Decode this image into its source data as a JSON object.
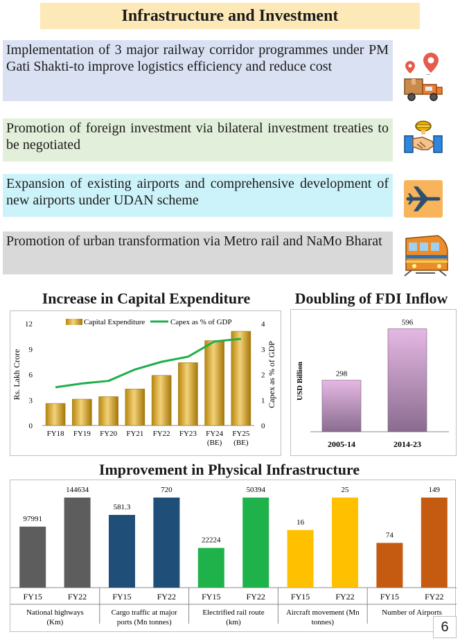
{
  "header": {
    "title": "Infrastructure and Investment"
  },
  "highlights": [
    {
      "text": "Implementation of 3 major railway corridor programmes under PM Gati Shakti-to improve logistics efficiency and reduce cost",
      "icon": "logistics-truck-icon"
    },
    {
      "text": "Promotion of foreign investment via bilateral investment treaties to be negotiated",
      "icon": "handshake-investment-icon"
    },
    {
      "text": "Expansion of existing airports and comprehensive development of new airports under UDAN scheme",
      "icon": "airplane-icon"
    },
    {
      "text": "Promotion of urban transformation via Metro rail and NaMo Bharat",
      "icon": "metro-train-icon"
    }
  ],
  "colors": {
    "title_bg": "#fde9b7",
    "item1_bg": "#d9e1f2",
    "item2_bg": "#e2efda",
    "item3_bg": "#cdf3fa",
    "item4_bg": "#d9d9d9",
    "capex_bar": "#d4a72c",
    "capex_line": "#1fae4b",
    "fdi_bar": "#d8a5d6",
    "nh": "#5d5d5d",
    "cargo": "#1f4e79",
    "rail": "#20b24a",
    "aircraft": "#ffc000",
    "airports": "#c55a11"
  },
  "chart_data": [
    {
      "type": "bar",
      "title": "Increase in Capital Expenditure",
      "categories": [
        "FY18",
        "FY19",
        "FY20",
        "FY21",
        "FY22",
        "FY23",
        "FY24 (BE)",
        "FY25 (BE)"
      ],
      "series": [
        {
          "name": "Capital Expenditure",
          "type": "bar",
          "axis": "left",
          "values": [
            2.6,
            3.1,
            3.4,
            4.3,
            5.9,
            7.4,
            10.0,
            11.1
          ]
        },
        {
          "name": "Capex as % of GDP",
          "type": "line",
          "axis": "right",
          "values": [
            1.5,
            1.65,
            1.75,
            2.2,
            2.5,
            2.7,
            3.3,
            3.4
          ]
        }
      ],
      "ylabel": "Rs. Lakh Crore",
      "y2label": "Capex as % of GDP",
      "ylim": [
        0,
        12
      ],
      "yticks": [
        0,
        3,
        6,
        9,
        12
      ],
      "y2lim": [
        0,
        4
      ],
      "y2ticks": [
        0,
        1,
        2,
        3,
        4
      ],
      "legend": "top",
      "grid": false
    },
    {
      "type": "bar",
      "title": "Doubling of FDI Inflow",
      "categories": [
        "2005-14",
        "2014-23"
      ],
      "values": [
        298,
        596
      ],
      "ylabel": "USD Billion",
      "ylim": [
        0,
        650
      ]
    },
    {
      "type": "bar",
      "title": "Improvement in Physical Infrastructure",
      "groups": [
        {
          "name": "National highways (Km)",
          "categories": [
            "FY15",
            "FY22"
          ],
          "values": [
            97991,
            144634
          ],
          "labels": [
            "97991",
            "144634"
          ],
          "color_key": "nh"
        },
        {
          "name": "Cargo traffic at major ports (Mn tonnes)",
          "categories": [
            "FY15",
            "FY22"
          ],
          "values": [
            581.3,
            720
          ],
          "labels": [
            "581.3",
            "720"
          ],
          "color_key": "cargo"
        },
        {
          "name": "Electrified rail route (km)",
          "categories": [
            "FY15",
            "FY22"
          ],
          "values": [
            22224,
            50394
          ],
          "labels": [
            "22224",
            "50394"
          ],
          "color_key": "rail"
        },
        {
          "name": "Aircraft movement (Mn tonnes)",
          "categories": [
            "FY15",
            "FY22"
          ],
          "values": [
            16,
            25
          ],
          "labels": [
            "16",
            "25"
          ],
          "color_key": "aircraft"
        },
        {
          "name": "Number of Airports",
          "categories": [
            "FY15",
            "FY22"
          ],
          "values": [
            74,
            149
          ],
          "labels": [
            "74",
            "149"
          ],
          "color_key": "airports"
        }
      ]
    }
  ],
  "page_number": "6"
}
